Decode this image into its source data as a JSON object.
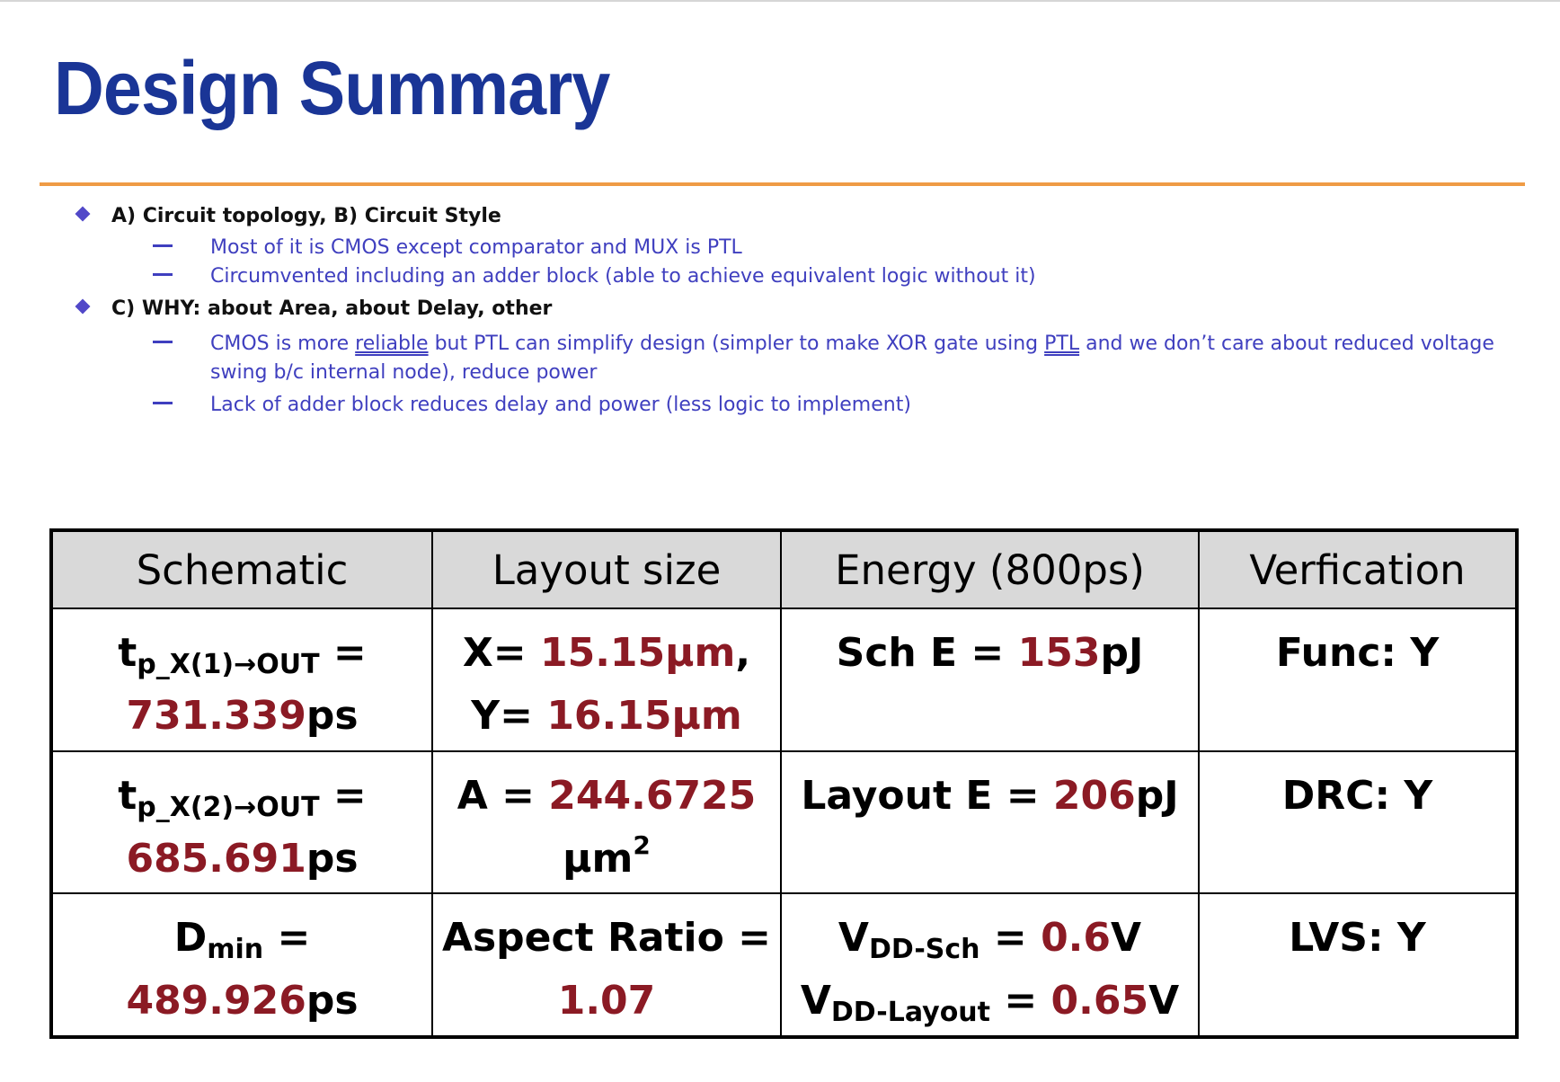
{
  "title": "Design Summary",
  "bullets": [
    {
      "label": "A) Circuit topology, B) Circuit Style",
      "items": [
        "Most of it is CMOS except comparator and MUX is PTL",
        "Circumvented including an adder block (able to achieve equivalent logic without it)"
      ]
    },
    {
      "label": "C) WHY: about Area, about Delay, other",
      "item1": {
        "part1": "CMOS is more ",
        "link1": "reliable",
        "part2": " but PTL can simplify design (simpler to make XOR gate using ",
        "link2": "PTL",
        "part3": " and we don’t care about reduced voltage swing b/c internal node), reduce power"
      },
      "item2": "Lack of adder block reduces delay and power (less logic to implement)"
    }
  ],
  "table": {
    "headers": [
      "Schematic",
      "Layout size",
      "Energy (800ps)",
      "Verfication"
    ],
    "schematic": {
      "r1": {
        "t": "t",
        "sub": "p_X(1)→OUT",
        "eq": " =",
        "value": "731.339",
        "unit": "ps"
      },
      "r2": {
        "t": "t",
        "sub": "p_X(2)→OUT",
        "eq": " =",
        "value": "685.691",
        "unit": "ps"
      },
      "r3": {
        "t": "D",
        "sub": "min",
        "eq": " =",
        "value": "489.926",
        "unit": "ps"
      }
    },
    "layout": {
      "x_label": "X= ",
      "x_value": "15.15µm",
      "x_comma": ",",
      "y_label": "Y= ",
      "y_value": "16.15µm",
      "a_label": "A = ",
      "a_value": "244.6725",
      "a_unit": "µm",
      "a_exp": "2",
      "ar_label": "Aspect Ratio =",
      "ar_value": "1.07"
    },
    "energy": {
      "sch_label": "Sch E = ",
      "sch_value": "153",
      "sch_unit": "pJ",
      "lay_label": "Layout E = ",
      "lay_value": "206",
      "lay_unit": "pJ",
      "vdd_sch_v": "V",
      "vdd_sch_sub": "DD-Sch",
      "vdd_sch_eq": " = ",
      "vdd_sch_value": "0.6",
      "vdd_sch_unit": "V",
      "vdd_lay_v": "V",
      "vdd_lay_sub": "DD-Layout",
      "vdd_lay_eq": " = ",
      "vdd_lay_value": "0.65",
      "vdd_lay_unit": "V"
    },
    "verification": [
      "Func: Y",
      "DRC: Y",
      "LVS: Y"
    ]
  }
}
